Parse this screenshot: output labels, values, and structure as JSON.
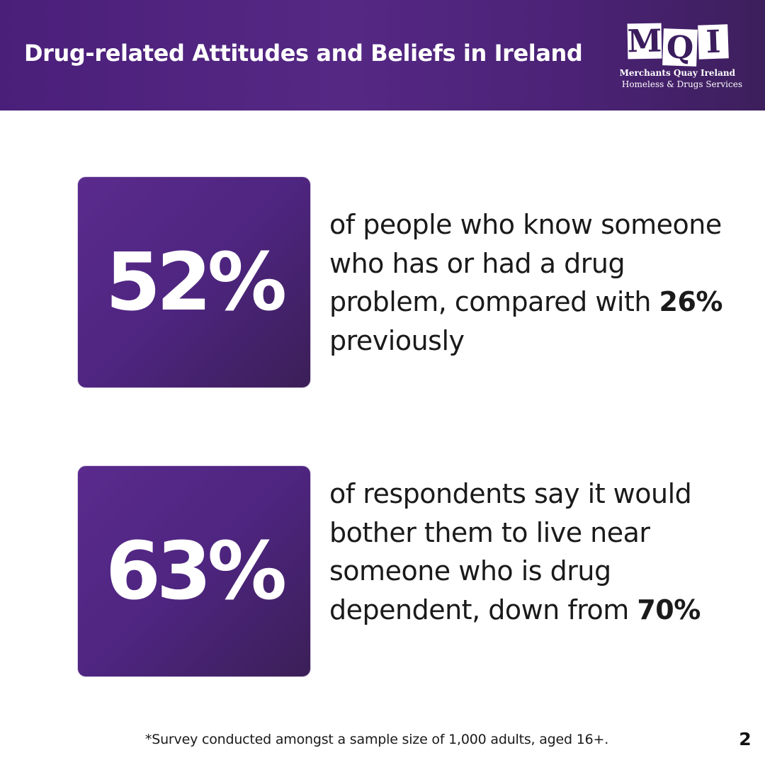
{
  "header": {
    "title": "Drug-related Attitudes and Beliefs in Ireland",
    "logo": {
      "letters": [
        "M",
        "Q",
        "I"
      ],
      "name": "Merchants Quay Ireland",
      "tagline": "Homeless & Drugs Services"
    }
  },
  "stats": [
    {
      "value": "52%",
      "description_before": "of people who know someone who has or had a drug problem, compared with ",
      "description_bold": "26%",
      "description_after": " previously"
    },
    {
      "value": "63%",
      "description_before": "of respondents say it would bother them to live near someone who is drug dependent, down from ",
      "description_bold": "70%",
      "description_after": ""
    }
  ],
  "footer": {
    "footnote": "*Survey conducted amongst a sample size of 1,000 adults, aged 16+.",
    "page_number": "2"
  },
  "colors": {
    "brand_purple": "#552884",
    "brand_dark_purple": "#3b1f57",
    "text": "#1a1a1a",
    "background": "#ffffff"
  }
}
